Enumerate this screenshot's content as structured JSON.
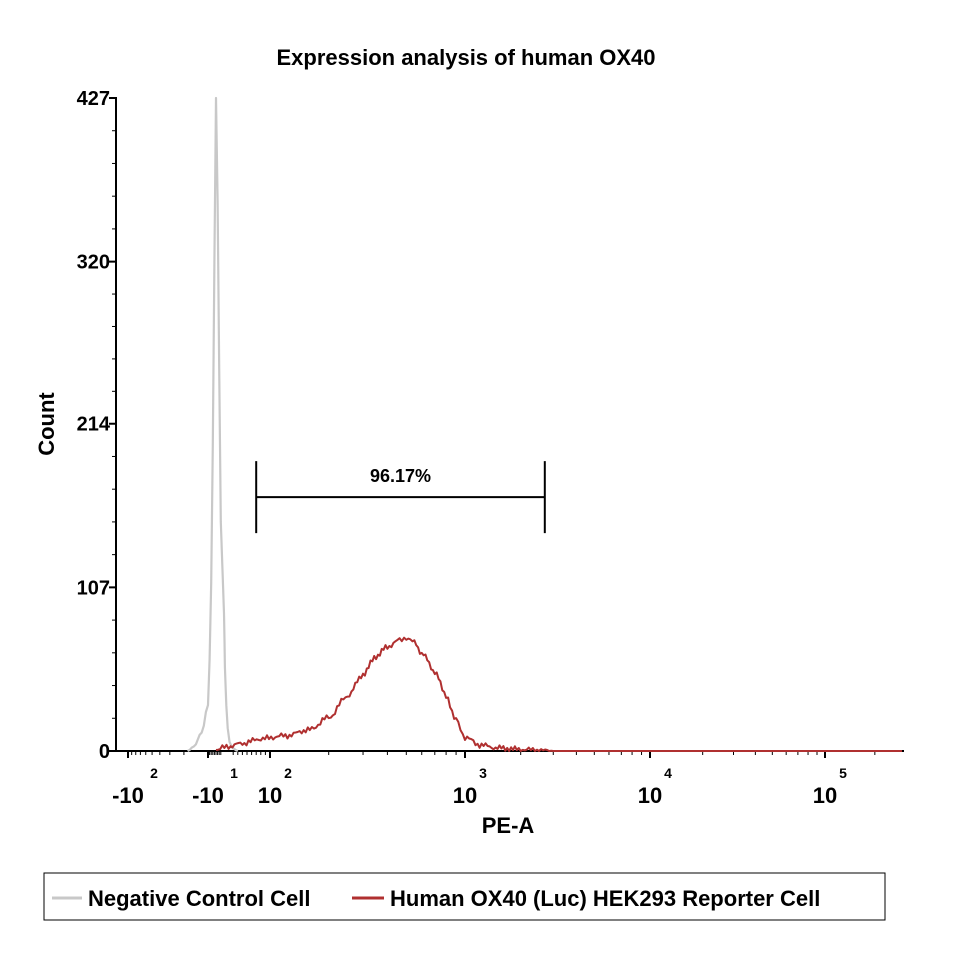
{
  "chart_data": {
    "type": "area",
    "title": "Expression analysis of human OX40",
    "xlabel": "PE-A",
    "ylabel": "Count",
    "ylim": [
      0,
      427
    ],
    "yticks": [
      "0",
      "107",
      "214",
      "320",
      "427"
    ],
    "xticks": [
      {
        "value": -100,
        "base": "-10",
        "exp": "2"
      },
      {
        "value": -10,
        "base": "-10",
        "exp": "1"
      },
      {
        "value": 100,
        "base": "10",
        "exp": "2"
      },
      {
        "value": 1000,
        "base": "10",
        "exp": "3"
      },
      {
        "value": 10000,
        "base": "10",
        "exp": "4"
      },
      {
        "value": 100000,
        "base": "10",
        "exp": "5"
      }
    ],
    "x_scale": "biexponential",
    "xlim": [
      -150,
      300000
    ],
    "series": [
      {
        "name": "Negative Control Cell",
        "color": "#c8c8c8",
        "x": [
          -18,
          -15,
          -12,
          -10,
          -9,
          -8,
          -7,
          -6,
          -5,
          -4,
          -3,
          -2,
          0,
          2,
          5,
          8,
          12,
          18,
          30
        ],
        "y": [
          0,
          3,
          12,
          30,
          60,
          110,
          200,
          320,
          427,
          360,
          250,
          150,
          90,
          55,
          30,
          15,
          6,
          2,
          0
        ]
      },
      {
        "name": "Human OX40 (Luc) HEK293 Reporter Cell",
        "color": "#b03030",
        "x": [
          -5,
          10,
          40,
          80,
          120,
          160,
          200,
          250,
          300,
          350,
          400,
          450,
          500,
          550,
          600,
          700,
          800,
          900,
          1000,
          1200,
          1500,
          2000,
          3000
        ],
        "y": [
          1,
          3,
          5,
          8,
          10,
          14,
          22,
          36,
          50,
          62,
          68,
          72,
          74,
          71,
          64,
          52,
          36,
          20,
          9,
          4,
          2,
          1,
          0
        ]
      }
    ],
    "gate": {
      "label": "96.17%",
      "x_start": 70,
      "x_end": 2700,
      "y": 166
    },
    "legend": {
      "position": "bottom",
      "entries": [
        "Negative Control Cell",
        "Human OX40 (Luc) HEK293 Reporter Cell"
      ]
    }
  }
}
